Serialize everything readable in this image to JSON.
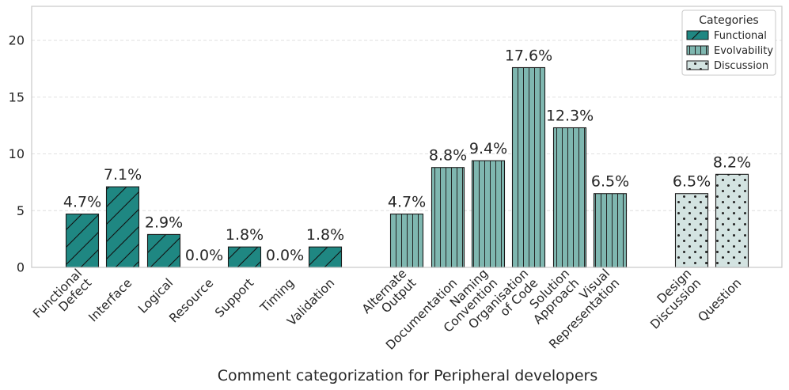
{
  "chart_data": {
    "type": "bar",
    "title": "",
    "xlabel": "Comment categorization for Peripheral developers",
    "ylabel": "",
    "ylim": [
      0,
      23
    ],
    "yticks": [
      0,
      5,
      10,
      15,
      20
    ],
    "grid": true,
    "legend": {
      "title": "Categories",
      "position": "top-right",
      "entries": [
        {
          "name": "Functional",
          "color": "#1f8782",
          "hatch": "diagonal"
        },
        {
          "name": "Evolvability",
          "color": "#7fb7b0",
          "hatch": "vertical"
        },
        {
          "name": "Discussion",
          "color": "#d3e3e1",
          "hatch": "dots"
        }
      ]
    },
    "series": [
      {
        "name": "Functional",
        "color": "#1f8782",
        "categories": [
          "Functional\nDefect",
          "Interface",
          "Logical",
          "Resource",
          "Support",
          "Timing",
          "Validation"
        ],
        "values": [
          4.7,
          7.1,
          2.9,
          0.0,
          1.8,
          0.0,
          1.8
        ],
        "labels": [
          "4.7%",
          "7.1%",
          "2.9%",
          "0.0%",
          "1.8%",
          "0.0%",
          "1.8%"
        ]
      },
      {
        "name": "Evolvability",
        "color": "#7fb7b0",
        "categories": [
          "Alternate\nOutput",
          "Documentation",
          "Naming\nConvention",
          "Organisation\nof Code",
          "Solution\nApproach",
          "Visual\nRepresentation"
        ],
        "values": [
          4.7,
          8.8,
          9.4,
          17.6,
          12.3,
          6.5
        ],
        "labels": [
          "4.7%",
          "8.8%",
          "9.4%",
          "17.6%",
          "12.3%",
          "6.5%"
        ]
      },
      {
        "name": "Discussion",
        "color": "#d3e3e1",
        "categories": [
          "Design\nDiscussion",
          "Question"
        ],
        "values": [
          6.5,
          8.2
        ],
        "labels": [
          "6.5%",
          "8.2%"
        ]
      }
    ]
  }
}
